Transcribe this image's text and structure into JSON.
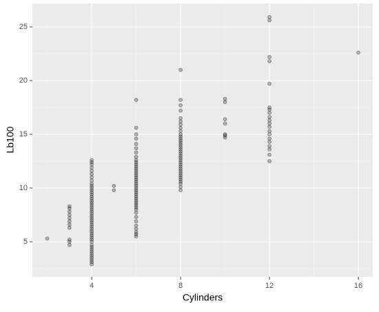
{
  "chart_data": {
    "type": "scatter",
    "x_label": "Cylinders",
    "y_label": "Lb100",
    "xlim": [
      1.33,
      16.65
    ],
    "ylim": [
      1.73,
      27.18
    ],
    "xticks": [
      4,
      8,
      12,
      16
    ],
    "yticks": [
      5,
      10,
      15,
      20,
      25
    ],
    "xminor": [
      2,
      6,
      10,
      14
    ],
    "yminor": [
      2.5,
      7.5,
      12.5,
      17.5,
      22.5
    ],
    "grid": true,
    "color": "#000000",
    "x": [
      2,
      3,
      3,
      3,
      3,
      3,
      3,
      3,
      3,
      3,
      3,
      3,
      4,
      4,
      4,
      4,
      4,
      4,
      4,
      4,
      4,
      4,
      4,
      4,
      4,
      4,
      4,
      4,
      4,
      4,
      4,
      4,
      4,
      4,
      4,
      4,
      4,
      4,
      4,
      4,
      4,
      4,
      4,
      4,
      4,
      4,
      4,
      4,
      4,
      4,
      4,
      4,
      4,
      4,
      4,
      4,
      4,
      4,
      5,
      5,
      6,
      6,
      6,
      6,
      6,
      6,
      6,
      6,
      6,
      6,
      6,
      6,
      6,
      6,
      6,
      6,
      6,
      6,
      6,
      6,
      6,
      6,
      6,
      6,
      6,
      6,
      6,
      6,
      6,
      6,
      6,
      6,
      6,
      6,
      6,
      6,
      6,
      6,
      6,
      6,
      8,
      8,
      8,
      8,
      8,
      8,
      8,
      8,
      8,
      8,
      8,
      8,
      8,
      8,
      8,
      8,
      8,
      8,
      8,
      8,
      8,
      8,
      8,
      8,
      8,
      8,
      8,
      8,
      8,
      8,
      8,
      8,
      8,
      8,
      8,
      10,
      10,
      10,
      10,
      10,
      10,
      10,
      12,
      12,
      12,
      12,
      12,
      12,
      12,
      12,
      12,
      12,
      12,
      12,
      12,
      12,
      12,
      12,
      12,
      12,
      12,
      12,
      16
    ],
    "y": [
      5.3,
      4.7,
      5.0,
      5.2,
      6.3,
      6.6,
      6.9,
      7.2,
      7.5,
      7.8,
      8.1,
      8.3,
      2.9,
      3.1,
      3.3,
      3.5,
      3.7,
      3.9,
      4.1,
      4.3,
      4.5,
      4.7,
      5.0,
      5.2,
      5.4,
      5.6,
      5.8,
      6.0,
      6.2,
      6.4,
      6.6,
      6.8,
      7.0,
      7.2,
      7.4,
      7.6,
      7.8,
      8.0,
      8.2,
      8.4,
      8.6,
      8.8,
      9.0,
      9.2,
      9.4,
      9.6,
      9.8,
      10.0,
      10.2,
      10.4,
      10.7,
      11.0,
      11.3,
      11.6,
      11.9,
      12.2,
      12.4,
      12.6,
      9.8,
      10.2,
      5.5,
      5.7,
      5.9,
      6.2,
      6.5,
      6.9,
      7.3,
      7.7,
      8.0,
      8.2,
      8.4,
      8.6,
      8.8,
      9.0,
      9.2,
      9.4,
      9.6,
      9.8,
      10.0,
      10.2,
      10.4,
      10.6,
      10.8,
      11.0,
      11.2,
      11.4,
      11.6,
      11.8,
      12.0,
      12.2,
      12.4,
      12.6,
      12.9,
      13.3,
      13.7,
      14.1,
      14.6,
      15.0,
      15.6,
      18.2,
      9.8,
      10.1,
      10.4,
      10.6,
      10.8,
      11.0,
      11.2,
      11.4,
      11.6,
      11.8,
      12.0,
      12.2,
      12.4,
      12.6,
      12.8,
      13.0,
      13.2,
      13.4,
      13.6,
      13.8,
      14.0,
      14.2,
      14.4,
      14.6,
      14.8,
      15.0,
      15.3,
      15.6,
      15.9,
      16.2,
      16.5,
      17.2,
      17.7,
      18.2,
      21.0,
      14.7,
      14.9,
      15.0,
      16.0,
      16.4,
      18.0,
      18.3,
      12.5,
      13.1,
      13.6,
      13.9,
      14.3,
      14.6,
      15.0,
      15.3,
      15.7,
      16.0,
      16.3,
      16.6,
      17.0,
      17.3,
      17.5,
      19.7,
      21.8,
      22.2,
      25.6,
      25.9,
      22.6
    ]
  }
}
